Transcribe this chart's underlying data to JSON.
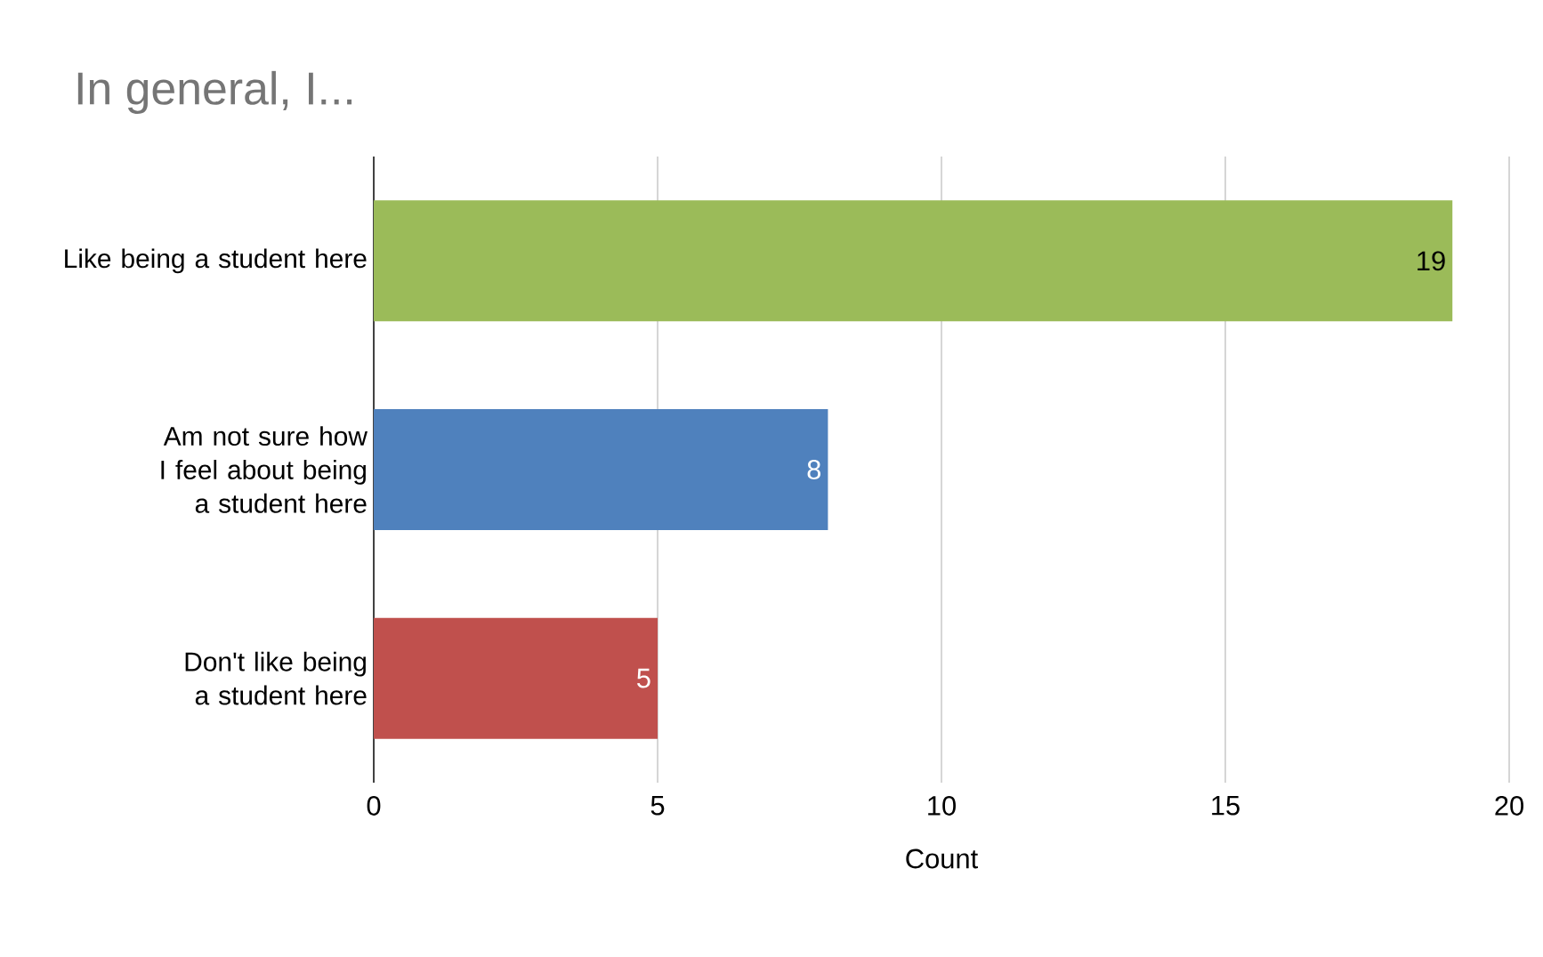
{
  "chart_data": {
    "type": "bar",
    "orientation": "horizontal",
    "title": "In general, I...",
    "xlabel": "Count",
    "categories": [
      "Like being a student here",
      "Am not sure how I feel about being a student here",
      "Don't like being a student here"
    ],
    "values": [
      19,
      8,
      5
    ],
    "colors": [
      "#9bbb59",
      "#4f81bd",
      "#c0504d"
    ],
    "data_labels": true,
    "xlim": [
      0,
      20
    ],
    "xticks": [
      0,
      5,
      10,
      15,
      20
    ],
    "grid": "x"
  }
}
